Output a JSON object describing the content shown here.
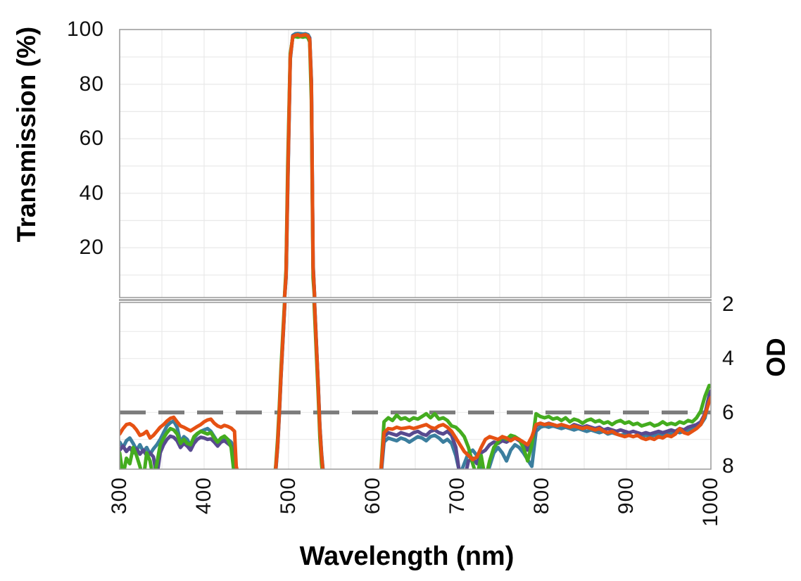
{
  "chart_data": {
    "type": "line",
    "title": "",
    "xlabel": "Wavelength (nm)",
    "ylabel_left": "Transmission (%)",
    "ylabel_right": "OD",
    "x_axis": {
      "min": 300,
      "max": 1000,
      "gridline_step_nm": 50,
      "tick_values": [
        300,
        400,
        500,
        600,
        700,
        800,
        900,
        1000
      ],
      "tick_labels": [
        "300",
        "400",
        "500",
        "600",
        "700",
        "800",
        "900",
        "1000"
      ]
    },
    "transmission_axis": {
      "min": 0,
      "max": 100,
      "grid_step": 10,
      "tick_values": [
        100,
        80,
        60,
        40,
        20
      ],
      "tick_labels": [
        "100",
        "80",
        "60",
        "40",
        "20"
      ]
    },
    "od_axis": {
      "min": 2,
      "max": 8,
      "inverted": true,
      "grid_step": 1,
      "tick_values": [
        2,
        4,
        6,
        8
      ],
      "tick_labels": [
        "2",
        "4",
        "6",
        "8"
      ]
    },
    "reference_line": {
      "od": 6,
      "style": "dashed",
      "color": "#7C7C7C"
    },
    "style": {
      "gridline_color": "#E9E9E9",
      "border_color": "#9E9E9E",
      "break_line_color": "#8A8A8A",
      "line_width": 5
    },
    "note": "Bandpass filter ~490-535 nm, peak transmission ~98%; blocking shown as OD (lower panel), spec line at OD 6. Transmission = 100*10^(-OD).",
    "wavelengths": [
      300,
      304,
      308,
      312,
      316,
      320,
      324,
      328,
      332,
      336,
      340,
      344,
      348,
      352,
      356,
      360,
      364,
      368,
      372,
      376,
      380,
      384,
      388,
      392,
      396,
      400,
      404,
      408,
      412,
      416,
      420,
      424,
      428,
      432,
      436,
      438,
      450,
      470,
      482,
      485,
      487,
      489,
      491,
      493,
      495,
      497,
      499,
      502,
      505,
      508,
      511,
      514,
      517,
      520,
      523,
      525,
      527,
      529,
      531,
      533,
      535,
      537,
      539,
      542,
      555,
      575,
      595,
      605,
      609,
      613,
      618,
      623,
      628,
      633,
      638,
      643,
      648,
      653,
      658,
      663,
      668,
      673,
      678,
      683,
      688,
      693,
      698,
      703,
      708,
      713,
      718,
      723,
      728,
      733,
      738,
      743,
      748,
      753,
      758,
      763,
      768,
      773,
      778,
      783,
      788,
      793,
      798,
      803,
      808,
      813,
      818,
      823,
      828,
      833,
      838,
      843,
      848,
      853,
      858,
      863,
      868,
      873,
      878,
      883,
      888,
      893,
      898,
      903,
      908,
      913,
      918,
      923,
      928,
      933,
      938,
      943,
      948,
      953,
      958,
      963,
      968,
      973,
      978,
      983,
      988,
      993,
      998,
      1000
    ],
    "series": [
      {
        "name": "teal",
        "color": "#3B7E9E",
        "od": [
          7.1,
          7.3,
          7.05,
          6.95,
          7.15,
          7.4,
          7.2,
          7.45,
          7.3,
          7.55,
          7.35,
          7.2,
          7.0,
          6.75,
          6.5,
          6.38,
          6.32,
          6.55,
          7.1,
          6.9,
          7.0,
          7.25,
          6.95,
          6.8,
          6.7,
          6.65,
          6.6,
          6.7,
          6.9,
          7.1,
          7.0,
          6.95,
          7.0,
          7.1,
          7.4,
          8.4,
          9.6,
          9.6,
          9.1,
          8.1,
          7.3,
          6.1,
          4.7,
          3.5,
          2.3,
          1.05,
          0.38,
          0.05,
          0.009,
          0.0065,
          0.006,
          0.0065,
          0.007,
          0.0065,
          0.008,
          0.013,
          0.09,
          0.85,
          2.1,
          3.5,
          4.9,
          6.5,
          7.5,
          8.55,
          9.6,
          9.6,
          9.6,
          9.1,
          8.5,
          7.1,
          6.95,
          7.0,
          7.05,
          6.95,
          7.0,
          7.1,
          7.0,
          6.9,
          6.95,
          7.05,
          6.9,
          6.85,
          6.95,
          7.1,
          7.0,
          7.15,
          7.6,
          8.3,
          7.9,
          7.5,
          7.4,
          7.6,
          8.1,
          8.5,
          8.0,
          7.5,
          7.3,
          7.5,
          7.8,
          7.4,
          7.2,
          7.3,
          7.5,
          7.75,
          8.0,
          6.7,
          6.55,
          6.5,
          6.55,
          6.5,
          6.55,
          6.6,
          6.55,
          6.6,
          6.65,
          6.6,
          6.65,
          6.7,
          6.65,
          6.7,
          6.75,
          6.7,
          6.8,
          6.75,
          6.8,
          6.85,
          6.8,
          6.85,
          6.9,
          6.85,
          6.9,
          6.85,
          6.9,
          6.85,
          6.8,
          6.85,
          6.75,
          6.8,
          6.7,
          6.75,
          6.7,
          6.65,
          6.6,
          6.55,
          6.45,
          6.2,
          5.45,
          5.3
        ]
      },
      {
        "name": "purple",
        "color": "#584A8F",
        "od": [
          7.4,
          7.25,
          7.45,
          7.3,
          7.5,
          7.35,
          7.55,
          7.4,
          7.6,
          7.5,
          7.65,
          8.4,
          7.5,
          7.2,
          7.0,
          6.88,
          6.92,
          7.05,
          7.3,
          7.15,
          7.25,
          7.4,
          7.15,
          7.0,
          6.92,
          6.95,
          7.0,
          6.98,
          7.1,
          7.25,
          7.1,
          7.05,
          7.15,
          7.25,
          7.9,
          8.7,
          9.55,
          9.55,
          9.05,
          8.05,
          7.25,
          6.05,
          4.65,
          3.45,
          2.25,
          1.02,
          0.36,
          0.047,
          0.01,
          0.0095,
          0.009,
          0.0095,
          0.01,
          0.009,
          0.011,
          0.014,
          0.095,
          0.88,
          2.15,
          3.55,
          4.95,
          6.55,
          7.55,
          8.6,
          9.55,
          9.55,
          9.55,
          9.05,
          8.4,
          6.9,
          6.75,
          6.8,
          6.85,
          6.75,
          6.8,
          6.85,
          6.75,
          6.7,
          6.8,
          6.85,
          6.7,
          6.65,
          6.75,
          6.8,
          6.7,
          6.85,
          7.3,
          8.4,
          8.5,
          7.8,
          7.7,
          7.9,
          7.5,
          7.4,
          7.2,
          7.1,
          7.15,
          7.05,
          7.1,
          7.0,
          6.95,
          7.05,
          7.15,
          7.4,
          7.1,
          6.5,
          6.4,
          6.45,
          6.4,
          6.45,
          6.5,
          6.45,
          6.5,
          6.55,
          6.45,
          6.5,
          6.55,
          6.5,
          6.55,
          6.6,
          6.55,
          6.65,
          6.6,
          6.65,
          6.7,
          6.65,
          6.7,
          6.75,
          6.7,
          6.75,
          6.8,
          6.75,
          6.8,
          6.75,
          6.7,
          6.75,
          6.7,
          6.65,
          6.7,
          6.6,
          6.65,
          6.55,
          6.5,
          6.45,
          6.35,
          6.05,
          5.35,
          5.2
        ]
      },
      {
        "name": "green",
        "color": "#44AC1F",
        "od": [
          7.5,
          8.35,
          7.7,
          7.9,
          7.3,
          7.6,
          8.0,
          8.5,
          7.5,
          7.8,
          8.5,
          7.9,
          7.2,
          6.95,
          6.75,
          6.6,
          6.65,
          6.8,
          7.15,
          7.0,
          7.15,
          7.2,
          6.9,
          6.78,
          6.7,
          6.75,
          6.8,
          6.75,
          6.95,
          7.1,
          6.95,
          6.88,
          7.0,
          7.3,
          8.4,
          8.9,
          9.5,
          9.5,
          8.9,
          7.9,
          7.0,
          5.8,
          4.4,
          3.2,
          2.05,
          0.92,
          0.3,
          0.04,
          0.012,
          0.011,
          0.012,
          0.011,
          0.012,
          0.011,
          0.013,
          0.02,
          0.13,
          1.05,
          2.5,
          3.9,
          5.3,
          6.9,
          7.9,
          8.8,
          9.5,
          9.5,
          9.5,
          8.8,
          8.3,
          6.35,
          6.2,
          6.3,
          6.1,
          6.25,
          6.2,
          6.3,
          6.2,
          6.25,
          6.15,
          6.05,
          6.2,
          6.05,
          6.25,
          6.2,
          6.3,
          6.5,
          6.55,
          6.7,
          6.9,
          7.3,
          7.9,
          8.4,
          7.6,
          8.5,
          7.8,
          7.3,
          7.1,
          6.9,
          7.0,
          6.85,
          6.9,
          7.0,
          7.3,
          7.8,
          7.2,
          6.05,
          6.15,
          6.2,
          6.15,
          6.25,
          6.2,
          6.3,
          6.2,
          6.35,
          6.25,
          6.3,
          6.4,
          6.3,
          6.25,
          6.35,
          6.3,
          6.4,
          6.35,
          6.45,
          6.35,
          6.3,
          6.4,
          6.35,
          6.45,
          6.4,
          6.5,
          6.45,
          6.4,
          6.5,
          6.45,
          6.35,
          6.45,
          6.4,
          6.45,
          6.35,
          6.4,
          6.3,
          6.35,
          6.2,
          5.95,
          5.4,
          5.0,
          5.05
        ]
      },
      {
        "name": "orange",
        "color": "#E65113",
        "od": [
          6.8,
          6.6,
          6.45,
          6.42,
          6.5,
          6.65,
          6.85,
          6.8,
          6.7,
          6.95,
          6.85,
          6.7,
          6.55,
          6.45,
          6.32,
          6.22,
          6.18,
          6.35,
          6.5,
          6.55,
          6.62,
          6.68,
          6.6,
          6.52,
          6.45,
          6.35,
          6.28,
          6.25,
          6.4,
          6.5,
          6.55,
          6.48,
          6.52,
          6.58,
          6.7,
          8.0,
          9.5,
          9.5,
          9.0,
          8.0,
          7.2,
          6.0,
          4.6,
          3.4,
          2.2,
          1.0,
          0.35,
          0.045,
          0.011,
          0.009,
          0.008,
          0.01,
          0.009,
          0.008,
          0.01,
          0.016,
          0.1,
          0.9,
          2.2,
          3.6,
          5.0,
          6.6,
          7.6,
          8.6,
          9.5,
          9.5,
          9.5,
          9.0,
          8.3,
          6.75,
          6.6,
          6.62,
          6.55,
          6.6,
          6.58,
          6.55,
          6.6,
          6.55,
          6.5,
          6.45,
          6.55,
          6.6,
          6.5,
          6.45,
          6.55,
          6.7,
          6.95,
          7.2,
          7.45,
          7.6,
          7.75,
          7.65,
          7.3,
          7.0,
          6.9,
          6.95,
          7.0,
          6.9,
          6.95,
          7.05,
          6.95,
          7.0,
          7.1,
          7.2,
          6.9,
          6.45,
          6.4,
          6.45,
          6.42,
          6.45,
          6.5,
          6.45,
          6.5,
          6.55,
          6.5,
          6.55,
          6.6,
          6.55,
          6.6,
          6.65,
          6.6,
          6.7,
          6.75,
          6.7,
          6.8,
          6.85,
          6.9,
          6.85,
          6.9,
          6.85,
          6.95,
          7.0,
          6.95,
          7.0,
          6.9,
          6.95,
          6.85,
          6.9,
          6.8,
          6.6,
          6.75,
          6.8,
          6.7,
          6.6,
          6.45,
          6.1,
          5.6,
          5.45
        ]
      }
    ]
  }
}
